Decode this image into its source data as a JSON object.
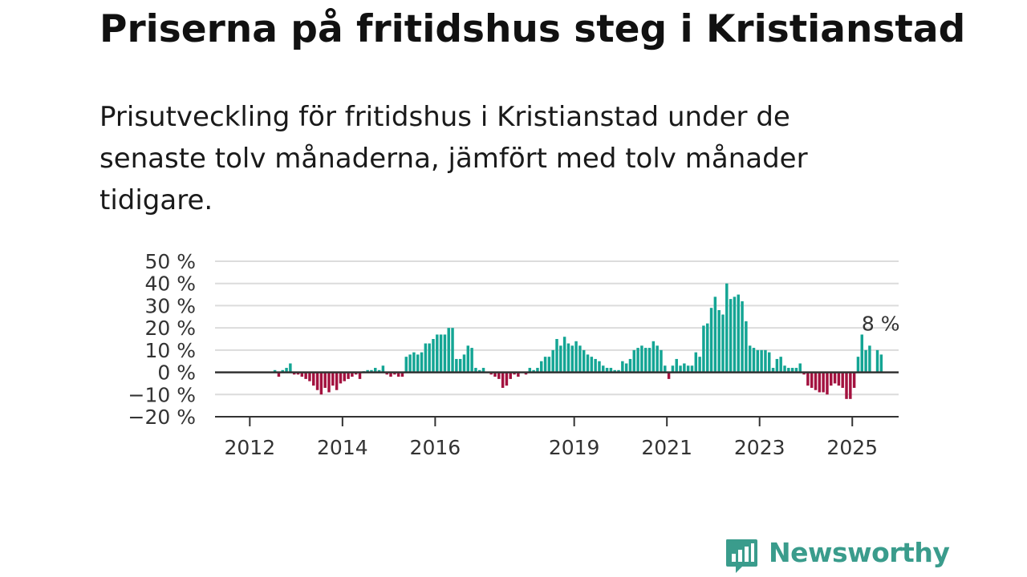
{
  "title": "Priserna på fritidshus steg i Kristianstad",
  "subtitle": "Prisutveckling för fritidshus i Kristianstad under de senaste tolv månaderna, jämfört med tolv månader tidigare.",
  "brand": {
    "name": "Newsworthy",
    "color": "#3a9c8c"
  },
  "colors": {
    "positive": "#14a594",
    "negative": "#a3123f",
    "grid": "#dcdcdc",
    "zero_line": "#333333"
  },
  "chart_data": {
    "type": "bar",
    "title": "",
    "xlabel": "",
    "ylabel": "",
    "ylim": [
      -20,
      50
    ],
    "yticks": [
      -20,
      -10,
      0,
      10,
      20,
      30,
      40,
      50
    ],
    "ytick_labels": [
      "−20 %",
      "−10 %",
      "0 %",
      "10 %",
      "20 %",
      "30 %",
      "40 %",
      "50 %"
    ],
    "xtick_labels": [
      {
        "label": "2012",
        "x": "2012-01"
      },
      {
        "label": "2014",
        "x": "2014-01"
      },
      {
        "label": "2016",
        "x": "2016-01"
      },
      {
        "label": "2019",
        "x": "2019-01"
      },
      {
        "label": "2021",
        "x": "2021-01"
      },
      {
        "label": "2023",
        "x": "2023-01"
      },
      {
        "label": "2025",
        "x": "2025-01"
      }
    ],
    "grid": true,
    "legend": "none",
    "x_range": [
      "2011-04",
      "2025-12"
    ],
    "annotation": {
      "text": "8 %",
      "x": "2025-03"
    },
    "series": [
      {
        "values": [
          {
            "x": "2012-07",
            "y": 1
          },
          {
            "x": "2012-08",
            "y": -2
          },
          {
            "x": "2012-09",
            "y": 1
          },
          {
            "x": "2012-10",
            "y": 2
          },
          {
            "x": "2012-11",
            "y": 4
          },
          {
            "x": "2012-12",
            "y": -1
          },
          {
            "x": "2013-01",
            "y": -1
          },
          {
            "x": "2013-02",
            "y": -2
          },
          {
            "x": "2013-03",
            "y": -3
          },
          {
            "x": "2013-04",
            "y": -4
          },
          {
            "x": "2013-05",
            "y": -6
          },
          {
            "x": "2013-06",
            "y": -8
          },
          {
            "x": "2013-07",
            "y": -10
          },
          {
            "x": "2013-08",
            "y": -7
          },
          {
            "x": "2013-09",
            "y": -9
          },
          {
            "x": "2013-10",
            "y": -6
          },
          {
            "x": "2013-11",
            "y": -8
          },
          {
            "x": "2013-12",
            "y": -5
          },
          {
            "x": "2014-01",
            "y": -4
          },
          {
            "x": "2014-02",
            "y": -3
          },
          {
            "x": "2014-03",
            "y": -2
          },
          {
            "x": "2014-04",
            "y": -1
          },
          {
            "x": "2014-05",
            "y": -3
          },
          {
            "x": "2014-06",
            "y": 0.5
          },
          {
            "x": "2014-07",
            "y": 1
          },
          {
            "x": "2014-08",
            "y": 1
          },
          {
            "x": "2014-09",
            "y": 2
          },
          {
            "x": "2014-10",
            "y": 1
          },
          {
            "x": "2014-11",
            "y": 3
          },
          {
            "x": "2014-12",
            "y": -1
          },
          {
            "x": "2015-01",
            "y": -2
          },
          {
            "x": "2015-02",
            "y": -1
          },
          {
            "x": "2015-03",
            "y": -2
          },
          {
            "x": "2015-04",
            "y": -2
          },
          {
            "x": "2015-05",
            "y": 7
          },
          {
            "x": "2015-06",
            "y": 8
          },
          {
            "x": "2015-07",
            "y": 9
          },
          {
            "x": "2015-08",
            "y": 8
          },
          {
            "x": "2015-09",
            "y": 9
          },
          {
            "x": "2015-10",
            "y": 13
          },
          {
            "x": "2015-11",
            "y": 13
          },
          {
            "x": "2015-12",
            "y": 15
          },
          {
            "x": "2016-01",
            "y": 17
          },
          {
            "x": "2016-02",
            "y": 17
          },
          {
            "x": "2016-03",
            "y": 17
          },
          {
            "x": "2016-04",
            "y": 20
          },
          {
            "x": "2016-05",
            "y": 20
          },
          {
            "x": "2016-06",
            "y": 6
          },
          {
            "x": "2016-07",
            "y": 6
          },
          {
            "x": "2016-08",
            "y": 8
          },
          {
            "x": "2016-09",
            "y": 12
          },
          {
            "x": "2016-10",
            "y": 11
          },
          {
            "x": "2016-11",
            "y": 2
          },
          {
            "x": "2016-12",
            "y": 1
          },
          {
            "x": "2017-01",
            "y": 2
          },
          {
            "x": "2017-02",
            "y": 0
          },
          {
            "x": "2017-03",
            "y": -1
          },
          {
            "x": "2017-04",
            "y": -2
          },
          {
            "x": "2017-05",
            "y": -3
          },
          {
            "x": "2017-06",
            "y": -7
          },
          {
            "x": "2017-07",
            "y": -6
          },
          {
            "x": "2017-08",
            "y": -3
          },
          {
            "x": "2017-09",
            "y": -1
          },
          {
            "x": "2017-10",
            "y": -2
          },
          {
            "x": "2017-11",
            "y": 0
          },
          {
            "x": "2017-12",
            "y": -1
          },
          {
            "x": "2018-01",
            "y": 2
          },
          {
            "x": "2018-02",
            "y": 1
          },
          {
            "x": "2018-03",
            "y": 2
          },
          {
            "x": "2018-04",
            "y": 5
          },
          {
            "x": "2018-05",
            "y": 7
          },
          {
            "x": "2018-06",
            "y": 7
          },
          {
            "x": "2018-07",
            "y": 10
          },
          {
            "x": "2018-08",
            "y": 15
          },
          {
            "x": "2018-09",
            "y": 12
          },
          {
            "x": "2018-10",
            "y": 16
          },
          {
            "x": "2018-11",
            "y": 13
          },
          {
            "x": "2018-12",
            "y": 12
          },
          {
            "x": "2019-01",
            "y": 14
          },
          {
            "x": "2019-02",
            "y": 12
          },
          {
            "x": "2019-03",
            "y": 10
          },
          {
            "x": "2019-04",
            "y": 8
          },
          {
            "x": "2019-05",
            "y": 7
          },
          {
            "x": "2019-06",
            "y": 6
          },
          {
            "x": "2019-07",
            "y": 5
          },
          {
            "x": "2019-08",
            "y": 3
          },
          {
            "x": "2019-09",
            "y": 2
          },
          {
            "x": "2019-10",
            "y": 2
          },
          {
            "x": "2019-11",
            "y": 1
          },
          {
            "x": "2019-12",
            "y": 1
          },
          {
            "x": "2020-01",
            "y": 5
          },
          {
            "x": "2020-02",
            "y": 4
          },
          {
            "x": "2020-03",
            "y": 6
          },
          {
            "x": "2020-04",
            "y": 10
          },
          {
            "x": "2020-05",
            "y": 11
          },
          {
            "x": "2020-06",
            "y": 12
          },
          {
            "x": "2020-07",
            "y": 11
          },
          {
            "x": "2020-08",
            "y": 11
          },
          {
            "x": "2020-09",
            "y": 14
          },
          {
            "x": "2020-10",
            "y": 12
          },
          {
            "x": "2020-11",
            "y": 10
          },
          {
            "x": "2020-12",
            "y": 3
          },
          {
            "x": "2021-01",
            "y": -3
          },
          {
            "x": "2021-02",
            "y": 3
          },
          {
            "x": "2021-03",
            "y": 6
          },
          {
            "x": "2021-04",
            "y": 3
          },
          {
            "x": "2021-05",
            "y": 4
          },
          {
            "x": "2021-06",
            "y": 3
          },
          {
            "x": "2021-07",
            "y": 3
          },
          {
            "x": "2021-08",
            "y": 9
          },
          {
            "x": "2021-09",
            "y": 7
          },
          {
            "x": "2021-10",
            "y": 21
          },
          {
            "x": "2021-11",
            "y": 22
          },
          {
            "x": "2021-12",
            "y": 29
          },
          {
            "x": "2022-01",
            "y": 34
          },
          {
            "x": "2022-02",
            "y": 28
          },
          {
            "x": "2022-03",
            "y": 26
          },
          {
            "x": "2022-04",
            "y": 40
          },
          {
            "x": "2022-05",
            "y": 33
          },
          {
            "x": "2022-06",
            "y": 34
          },
          {
            "x": "2022-07",
            "y": 35
          },
          {
            "x": "2022-08",
            "y": 32
          },
          {
            "x": "2022-09",
            "y": 23
          },
          {
            "x": "2022-10",
            "y": 12
          },
          {
            "x": "2022-11",
            "y": 11
          },
          {
            "x": "2022-12",
            "y": 10
          },
          {
            "x": "2023-01",
            "y": 10
          },
          {
            "x": "2023-02",
            "y": 10
          },
          {
            "x": "2023-03",
            "y": 9
          },
          {
            "x": "2023-04",
            "y": 2
          },
          {
            "x": "2023-05",
            "y": 6
          },
          {
            "x": "2023-06",
            "y": 7
          },
          {
            "x": "2023-07",
            "y": 3
          },
          {
            "x": "2023-08",
            "y": 2
          },
          {
            "x": "2023-09",
            "y": 2
          },
          {
            "x": "2023-10",
            "y": 2
          },
          {
            "x": "2023-11",
            "y": 4
          },
          {
            "x": "2023-12",
            "y": -1
          },
          {
            "x": "2024-01",
            "y": -6
          },
          {
            "x": "2024-02",
            "y": -7
          },
          {
            "x": "2024-03",
            "y": -8
          },
          {
            "x": "2024-04",
            "y": -9
          },
          {
            "x": "2024-05",
            "y": -9
          },
          {
            "x": "2024-06",
            "y": -10
          },
          {
            "x": "2024-07",
            "y": -6
          },
          {
            "x": "2024-08",
            "y": -5
          },
          {
            "x": "2024-09",
            "y": -6
          },
          {
            "x": "2024-10",
            "y": -7
          },
          {
            "x": "2024-11",
            "y": -12
          },
          {
            "x": "2024-12",
            "y": -12
          },
          {
            "x": "2025-01",
            "y": -7
          },
          {
            "x": "2025-02",
            "y": 7
          },
          {
            "x": "2025-03",
            "y": 17
          },
          {
            "x": "2025-04",
            "y": 10
          },
          {
            "x": "2025-05",
            "y": 12
          },
          {
            "x": "2025-07",
            "y": 10
          },
          {
            "x": "2025-08",
            "y": 8
          }
        ]
      }
    ]
  }
}
